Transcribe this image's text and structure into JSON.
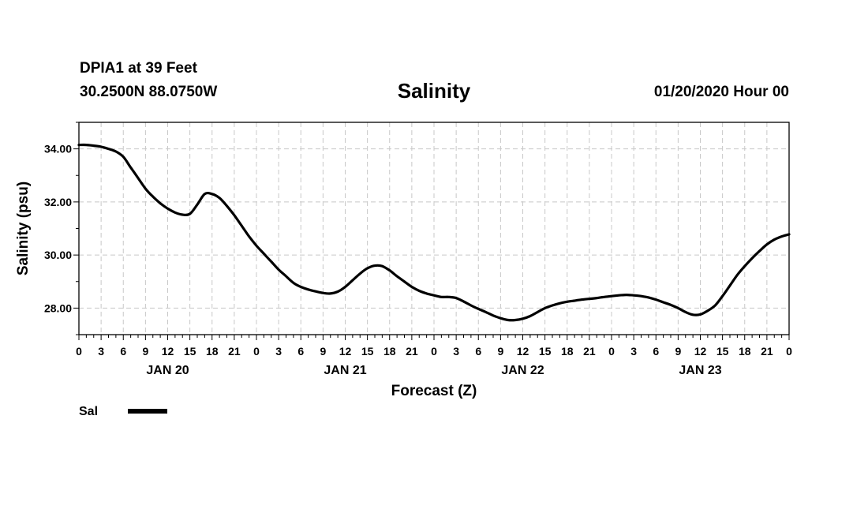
{
  "header": {
    "station": "DPIA1 at 39 Feet",
    "coordinates": "30.2500N 88.0750W",
    "title": "Salinity",
    "datetime": "01/20/2020 Hour 00"
  },
  "chart_data": {
    "type": "line",
    "title": "Salinity",
    "xlabel": "Forecast (Z)",
    "ylabel": "Salinity (psu)",
    "ylim": [
      27.0,
      35.0
    ],
    "xlim": [
      0,
      96
    ],
    "yticks": [
      "28.00",
      "30.00",
      "32.00",
      "34.00"
    ],
    "ytick_values": [
      28,
      30,
      32,
      34
    ],
    "xtick_labels": [
      "0",
      "3",
      "6",
      "9",
      "12",
      "15",
      "18",
      "21",
      "0",
      "3",
      "6",
      "9",
      "12",
      "15",
      "18",
      "21",
      "0",
      "3",
      "6",
      "9",
      "12",
      "15",
      "18",
      "21",
      "0",
      "3",
      "6",
      "9",
      "12",
      "15",
      "18",
      "21",
      "0"
    ],
    "day_labels": [
      {
        "label": "JAN 20",
        "hour": 12
      },
      {
        "label": "JAN 21",
        "hour": 36
      },
      {
        "label": "JAN 22",
        "hour": 60
      },
      {
        "label": "JAN 23",
        "hour": 84
      }
    ],
    "grid": true,
    "legend": [
      {
        "name": "Sal",
        "color": "#000000"
      }
    ],
    "series": [
      {
        "name": "Sal",
        "color": "#000000",
        "x": [
          0,
          1,
          2,
          3,
          4,
          5,
          6,
          7,
          8,
          9,
          10,
          11,
          12,
          13,
          14,
          15,
          16,
          17,
          18,
          19,
          20,
          21,
          22,
          23,
          24,
          25,
          26,
          27,
          28,
          29,
          30,
          31,
          32,
          33,
          34,
          35,
          36,
          37,
          38,
          39,
          40,
          41,
          42,
          43,
          44,
          45,
          46,
          47,
          48,
          49,
          50,
          51,
          52,
          53,
          54,
          55,
          56,
          57,
          58,
          59,
          60,
          61,
          62,
          63,
          64,
          65,
          66,
          67,
          68,
          69,
          70,
          71,
          72,
          73,
          74,
          75,
          76,
          77,
          78,
          79,
          80,
          81,
          82,
          83,
          84,
          85,
          86,
          87,
          88,
          89,
          90,
          91,
          92,
          93,
          94,
          95,
          96
        ],
        "values": [
          34.15,
          34.15,
          34.12,
          34.08,
          34.0,
          33.9,
          33.7,
          33.3,
          32.9,
          32.5,
          32.2,
          31.95,
          31.75,
          31.6,
          31.52,
          31.55,
          31.9,
          32.3,
          32.3,
          32.15,
          31.85,
          31.5,
          31.1,
          30.7,
          30.35,
          30.05,
          29.75,
          29.45,
          29.2,
          28.95,
          28.8,
          28.7,
          28.63,
          28.57,
          28.55,
          28.62,
          28.8,
          29.05,
          29.3,
          29.5,
          29.6,
          29.58,
          29.42,
          29.2,
          29.0,
          28.8,
          28.65,
          28.55,
          28.48,
          28.42,
          28.42,
          28.38,
          28.25,
          28.1,
          27.97,
          27.85,
          27.72,
          27.62,
          27.55,
          27.55,
          27.6,
          27.7,
          27.85,
          28.0,
          28.1,
          28.18,
          28.24,
          28.28,
          28.32,
          28.35,
          28.38,
          28.42,
          28.45,
          28.48,
          28.5,
          28.48,
          28.45,
          28.4,
          28.32,
          28.22,
          28.12,
          28.0,
          27.85,
          27.75,
          27.76,
          27.9,
          28.1,
          28.45,
          28.85,
          29.25,
          29.58,
          29.88,
          30.15,
          30.4,
          30.58,
          30.7,
          30.78
        ]
      }
    ]
  }
}
